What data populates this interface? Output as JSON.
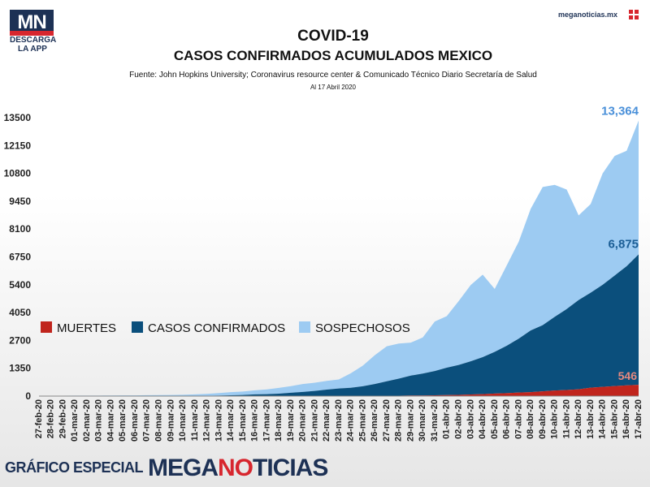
{
  "logo": {
    "mark": "MN",
    "line1": "DESCARGA",
    "line2": "LA APP"
  },
  "site": "meganoticias.mx",
  "footer": {
    "label": "GRÁFICO ESPECIAL",
    "brand_a": "MEGA",
    "brand_b": "NO",
    "brand_c": "TICIAS"
  },
  "colors": {
    "muertes": "#c0251d",
    "confirmados": "#0b4f7c",
    "sospechosos": "#9dcbf2",
    "navy": "#1d3155",
    "label_blue": "#4a90d9"
  },
  "chart_data": {
    "type": "area",
    "title": "COVID-19",
    "subtitle": "CASOS CONFIRMADOS ACUMULADOS MEXICO",
    "source": "Fuente: John Hopkins University; Coronavirus resource center & Comunicado Técnico Diario Secretaría de Salud",
    "date_note": "Al 17 Abril 2020",
    "stacked": true,
    "ylim": [
      0,
      13500
    ],
    "yticks": [
      "0",
      "1350",
      "2700",
      "4050",
      "5400",
      "6750",
      "8100",
      "9450",
      "10800",
      "12150",
      "13500"
    ],
    "grid": false,
    "legend_position": "middle-left",
    "x": [
      "27-feb-20",
      "28-feb-20",
      "29-feb-20",
      "01-mar-20",
      "02-mar-20",
      "03-mar-20",
      "04-mar-20",
      "05-mar-20",
      "06-mar-20",
      "07-mar-20",
      "08-mar-20",
      "09-mar-20",
      "10-mar-20",
      "11-mar-20",
      "12-mar-20",
      "13-mar-20",
      "14-mar-20",
      "15-mar-20",
      "16-mar-20",
      "17-mar-20",
      "18-mar-20",
      "19-mar-20",
      "20-mar-20",
      "21-mar-20",
      "22-mar-20",
      "23-mar-20",
      "24-mar-20",
      "25-mar-20",
      "26-mar-20",
      "27-mar-20",
      "28-mar-20",
      "29-mar-20",
      "30-mar-20",
      "31-mar-20",
      "01-abr-20",
      "02-abr-20",
      "03-abr-20",
      "04-abr-20",
      "05-abr-20",
      "06-abr-20",
      "07-abr-20",
      "08-abr-20",
      "09-abr-20",
      "10-abr-20",
      "11-abr-20",
      "12-abr-20",
      "13-abr-20",
      "14-abr-20",
      "15-abr-20",
      "16-abr-20",
      "17-abr-20"
    ],
    "series": [
      {
        "name": "MUERTES",
        "values": [
          0,
          0,
          0,
          0,
          0,
          0,
          0,
          0,
          0,
          0,
          0,
          0,
          0,
          0,
          0,
          0,
          0,
          0,
          0,
          0,
          1,
          2,
          2,
          2,
          4,
          5,
          5,
          8,
          12,
          16,
          20,
          28,
          29,
          37,
          50,
          60,
          79,
          94,
          125,
          141,
          174,
          194,
          233,
          273,
          296,
          332,
          406,
          449,
          486,
          520,
          546
        ]
      },
      {
        "name": "CASOS CONFIRMADOS",
        "values": [
          2,
          4,
          4,
          5,
          5,
          5,
          5,
          5,
          6,
          7,
          7,
          7,
          8,
          12,
          16,
          26,
          41,
          53,
          82,
          93,
          118,
          164,
          203,
          251,
          316,
          367,
          405,
          475,
          585,
          717,
          848,
          993,
          1094,
          1215,
          1378,
          1510,
          1688,
          1890,
          2143,
          2439,
          2785,
          3181,
          3441,
          3844,
          4219,
          4661,
          5014,
          5399,
          5847,
          6297,
          6875
        ]
      },
      {
        "name": "SOSPECHOSOS",
        "values": [
          10,
          12,
          14,
          18,
          20,
          22,
          25,
          28,
          30,
          35,
          40,
          45,
          55,
          70,
          90,
          120,
          150,
          170,
          200,
          230,
          280,
          320,
          380,
          400,
          420,
          440,
          700,
          1000,
          1400,
          1700,
          1700,
          1600,
          1750,
          2400,
          2500,
          3100,
          3700,
          4000,
          3050,
          3900,
          4700,
          5900,
          6700,
          6400,
          5800,
          4100,
          4300,
          5400,
          5800,
          5600,
          6489
        ]
      }
    ],
    "data_labels": {
      "sospechosos_total": "13,364",
      "confirmados": "6,875",
      "muertes": "546"
    }
  }
}
